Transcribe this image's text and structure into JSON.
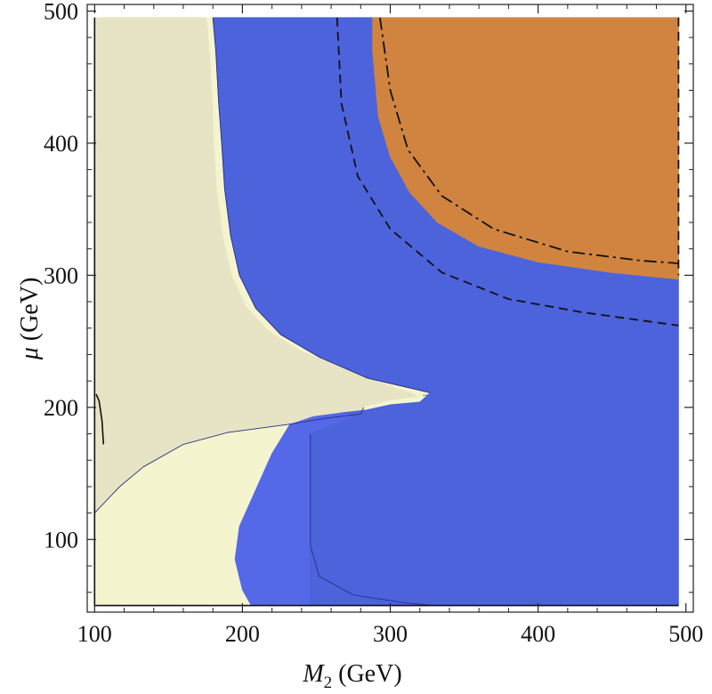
{
  "chart_data": {
    "type": "area",
    "xlabel_symbol": "M",
    "xlabel_sub": "2",
    "xlabel_unit": " (GeV)",
    "ylabel_symbol": "μ",
    "ylabel_unit": " (GeV)",
    "xlim": [
      95,
      505
    ],
    "ylim": [
      45,
      505
    ],
    "xticks": [
      100,
      200,
      300,
      400,
      500
    ],
    "yticks": [
      100,
      200,
      300,
      400,
      500
    ],
    "grid": false,
    "colors": {
      "khaki": "#e6e4c4",
      "cream": "#f4f4cf",
      "blue_light": "#5468e8",
      "blue": "#4c63dc",
      "orange": "#d08440"
    },
    "regions": [
      {
        "fill": "khaki",
        "points": [
          [
            100,
            495
          ],
          [
            176,
            495
          ],
          [
            178,
            470
          ],
          [
            180,
            430
          ],
          [
            181,
            400
          ],
          [
            183,
            365
          ],
          [
            187,
            330
          ],
          [
            193,
            300
          ],
          [
            203,
            276
          ],
          [
            218,
            258
          ],
          [
            240,
            243
          ],
          [
            268,
            230
          ],
          [
            296,
            218
          ],
          [
            315,
            211
          ],
          [
            320,
            208
          ],
          [
            300,
            205
          ],
          [
            282,
            200
          ],
          [
            280,
            195
          ],
          [
            258,
            192
          ],
          [
            230,
            187
          ],
          [
            190,
            181
          ],
          [
            160,
            172
          ],
          [
            133,
            155
          ],
          [
            117,
            140
          ],
          [
            100,
            120
          ]
        ]
      },
      {
        "fill": "cream",
        "points": [
          [
            176,
            495
          ],
          [
            180,
            495
          ],
          [
            182,
            470
          ],
          [
            184,
            430
          ],
          [
            186,
            400
          ],
          [
            188,
            365
          ],
          [
            192,
            330
          ],
          [
            198,
            300
          ],
          [
            209,
            275
          ],
          [
            226,
            255
          ],
          [
            252,
            238
          ],
          [
            285,
            222
          ],
          [
            316,
            214
          ],
          [
            327,
            211
          ],
          [
            320,
            204
          ],
          [
            300,
            202
          ],
          [
            284,
            198
          ],
          [
            268,
            196
          ],
          [
            248,
            193
          ],
          [
            232,
            187
          ],
          [
            220,
            165
          ],
          [
            210,
            140
          ],
          [
            198,
            110
          ],
          [
            195,
            85
          ],
          [
            200,
            62
          ],
          [
            206,
            50
          ],
          [
            100,
            50
          ],
          [
            100,
            120
          ],
          [
            117,
            140
          ],
          [
            133,
            155
          ],
          [
            160,
            172
          ],
          [
            190,
            181
          ],
          [
            230,
            187
          ],
          [
            258,
            192
          ],
          [
            280,
            195
          ],
          [
            282,
            200
          ],
          [
            300,
            205
          ],
          [
            320,
            208
          ],
          [
            315,
            211
          ],
          [
            296,
            218
          ],
          [
            268,
            230
          ],
          [
            240,
            243
          ],
          [
            218,
            258
          ],
          [
            203,
            276
          ],
          [
            193,
            300
          ],
          [
            187,
            330
          ],
          [
            183,
            365
          ],
          [
            181,
            400
          ],
          [
            180,
            430
          ],
          [
            178,
            470
          ]
        ]
      },
      {
        "fill": "blue_light",
        "points": [
          [
            232,
            187
          ],
          [
            248,
            193
          ],
          [
            268,
            196
          ],
          [
            275,
            193
          ],
          [
            260,
            186
          ],
          [
            246,
            180
          ],
          [
            246,
            140
          ],
          [
            246,
            95
          ],
          [
            246,
            50
          ],
          [
            206,
            50
          ],
          [
            200,
            62
          ],
          [
            195,
            85
          ],
          [
            198,
            110
          ],
          [
            210,
            140
          ],
          [
            220,
            165
          ]
        ]
      },
      {
        "fill": "blue",
        "points": [
          [
            180,
            495
          ],
          [
            288,
            495
          ],
          [
            288,
            470
          ],
          [
            292,
            420
          ],
          [
            300,
            390
          ],
          [
            313,
            363
          ],
          [
            332,
            340
          ],
          [
            360,
            322
          ],
          [
            400,
            310
          ],
          [
            450,
            302
          ],
          [
            495,
            300
          ],
          [
            495,
            50
          ],
          [
            246,
            50
          ],
          [
            246,
            95
          ],
          [
            246,
            140
          ],
          [
            246,
            180
          ],
          [
            260,
            186
          ],
          [
            275,
            193
          ],
          [
            268,
            196
          ],
          [
            284,
            198
          ],
          [
            300,
            202
          ],
          [
            320,
            204
          ],
          [
            327,
            211
          ],
          [
            316,
            214
          ],
          [
            285,
            222
          ],
          [
            252,
            238
          ],
          [
            226,
            255
          ],
          [
            209,
            275
          ],
          [
            198,
            300
          ],
          [
            192,
            330
          ],
          [
            188,
            365
          ],
          [
            186,
            400
          ],
          [
            184,
            430
          ],
          [
            182,
            470
          ]
        ]
      },
      {
        "fill": "blue",
        "points": [
          [
            322,
            209
          ],
          [
            345,
            212
          ],
          [
            380,
            213
          ],
          [
            340,
            211
          ]
        ]
      },
      {
        "fill": "orange",
        "points": [
          [
            288,
            495
          ],
          [
            495,
            495
          ],
          [
            495,
            297
          ],
          [
            450,
            302
          ],
          [
            400,
            310
          ],
          [
            360,
            322
          ],
          [
            332,
            340
          ],
          [
            313,
            363
          ],
          [
            300,
            390
          ],
          [
            292,
            420
          ],
          [
            288,
            470
          ]
        ]
      }
    ],
    "curves": [
      {
        "style": "thin",
        "points": [
          [
            180,
            495
          ],
          [
            182,
            470
          ],
          [
            184,
            430
          ],
          [
            186,
            400
          ],
          [
            188,
            365
          ],
          [
            192,
            330
          ],
          [
            198,
            300
          ],
          [
            209,
            275
          ],
          [
            226,
            255
          ],
          [
            252,
            238
          ],
          [
            285,
            222
          ],
          [
            316,
            214
          ],
          [
            327,
            211
          ]
        ]
      },
      {
        "style": "thin",
        "points": [
          [
            100,
            120
          ],
          [
            117,
            140
          ],
          [
            133,
            155
          ],
          [
            160,
            172
          ],
          [
            190,
            181
          ],
          [
            230,
            187
          ],
          [
            258,
            192
          ],
          [
            280,
            195
          ],
          [
            282,
            200
          ]
        ]
      },
      {
        "style": "thin",
        "points": [
          [
            246,
            180
          ],
          [
            246,
            140
          ],
          [
            246,
            95
          ],
          [
            252,
            72
          ],
          [
            275,
            58
          ],
          [
            310,
            52
          ],
          [
            330,
            50
          ]
        ]
      },
      {
        "style": "dashed",
        "points": [
          [
            264,
            495
          ],
          [
            267,
            430
          ],
          [
            278,
            375
          ],
          [
            300,
            335
          ],
          [
            335,
            302
          ],
          [
            380,
            282
          ],
          [
            430,
            272
          ],
          [
            475,
            265
          ],
          [
            495,
            262
          ]
        ]
      },
      {
        "style": "dashdot",
        "points": [
          [
            293,
            495
          ],
          [
            300,
            440
          ],
          [
            312,
            395
          ],
          [
            335,
            360
          ],
          [
            370,
            335
          ],
          [
            420,
            318
          ],
          [
            470,
            311
          ],
          [
            495,
            309
          ]
        ]
      },
      {
        "style": "dashed",
        "points": [
          [
            495,
            495
          ],
          [
            495,
            300
          ]
        ]
      },
      {
        "style": "solid",
        "points": [
          [
            100,
            495
          ],
          [
            100,
            50
          ],
          [
            495,
            50
          ]
        ]
      },
      {
        "style": "solid",
        "points": [
          [
            101,
            210
          ],
          [
            103,
            205
          ],
          [
            105,
            190
          ],
          [
            106,
            172
          ]
        ]
      }
    ]
  }
}
